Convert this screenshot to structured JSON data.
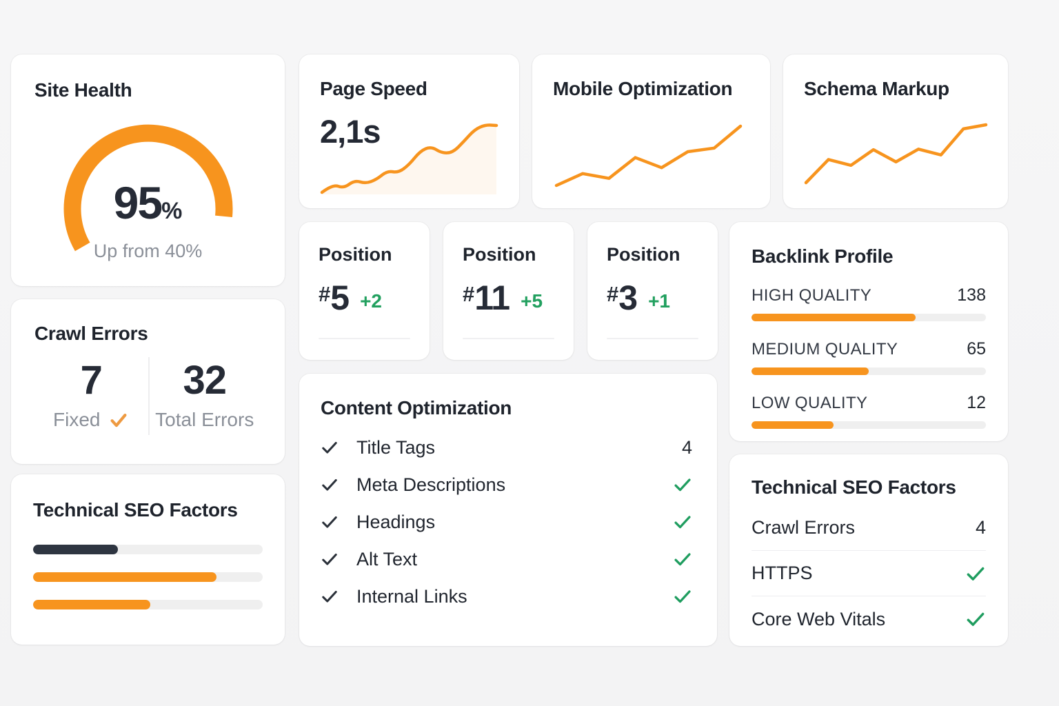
{
  "colors": {
    "accent_orange": "#f7941e",
    "dark_navy": "#262b36",
    "green": "#1f9d5f",
    "gray_text": "#8a8f98",
    "track_gray": "#efefef",
    "dark_bar": "#2e3541",
    "card_bg": "#ffffff",
    "page_bg": "#f4f4f5"
  },
  "site_health": {
    "title": "Site Health",
    "percent": 95,
    "percent_suffix": "%",
    "subtitle": "Up from 40%",
    "gauge": {
      "start_deg": 210,
      "total_deg": 227
    }
  },
  "page_speed": {
    "title": "Page Speed",
    "value": "2,1s",
    "chart_data": {
      "type": "line",
      "smooth": true,
      "area": true,
      "values": [
        0,
        12,
        6,
        18,
        13,
        19,
        32,
        29,
        41,
        61,
        68,
        58,
        59,
        75,
        93,
        100,
        99
      ]
    }
  },
  "mobile_optimization": {
    "title": "Mobile Optimization",
    "chart_data": {
      "type": "line",
      "smooth": false,
      "area": false,
      "values": [
        0,
        20,
        12,
        47,
        30,
        57,
        63,
        100
      ]
    }
  },
  "schema_markup": {
    "title": "Schema Markup",
    "chart_data": {
      "type": "line",
      "smooth": false,
      "area": false,
      "values": [
        0,
        40,
        30,
        57,
        36,
        58,
        48,
        93,
        100
      ]
    }
  },
  "positions": [
    {
      "title": "Position",
      "hash": "#",
      "rank": "5",
      "delta": "+2"
    },
    {
      "title": "Position",
      "hash": "#",
      "rank": "11",
      "delta": "+5"
    },
    {
      "title": "Position",
      "hash": "#",
      "rank": "3",
      "delta": "+1"
    }
  ],
  "backlink_profile": {
    "title": "Backlink Profile",
    "rows": [
      {
        "label": "HIGH QUALITY",
        "value": "138",
        "pct": 70
      },
      {
        "label": "MEDIUM QUALITY",
        "value": "65",
        "pct": 50
      },
      {
        "label": "LOW QUALITY",
        "value": "12",
        "pct": 35
      }
    ]
  },
  "crawl_errors": {
    "title": "Crawl Errors",
    "fixed_value": "7",
    "fixed_label": "Fixed",
    "total_value": "32",
    "total_label": "Total Errors"
  },
  "technical_seo_left": {
    "title": "Technical SEO Factors",
    "chart_data": {
      "type": "bar",
      "bars": [
        {
          "pct": 37,
          "color": "dark"
        },
        {
          "pct": 80,
          "color": "orange"
        },
        {
          "pct": 51,
          "color": "orange"
        }
      ]
    }
  },
  "content_optimization": {
    "title": "Content Optimization",
    "items": [
      {
        "label": "Title Tags",
        "status": "4"
      },
      {
        "label": "Meta Descriptions",
        "status": "check"
      },
      {
        "label": "Headings",
        "status": "check"
      },
      {
        "label": "Alt Text",
        "status": "check"
      },
      {
        "label": "Internal Links",
        "status": "check"
      }
    ]
  },
  "technical_seo_right": {
    "title": "Technical SEO Factors",
    "items": [
      {
        "label": "Crawl Errors",
        "status": "4"
      },
      {
        "label": "HTTPS",
        "status": "check"
      },
      {
        "label": "Core Web Vitals",
        "status": "check"
      }
    ]
  }
}
